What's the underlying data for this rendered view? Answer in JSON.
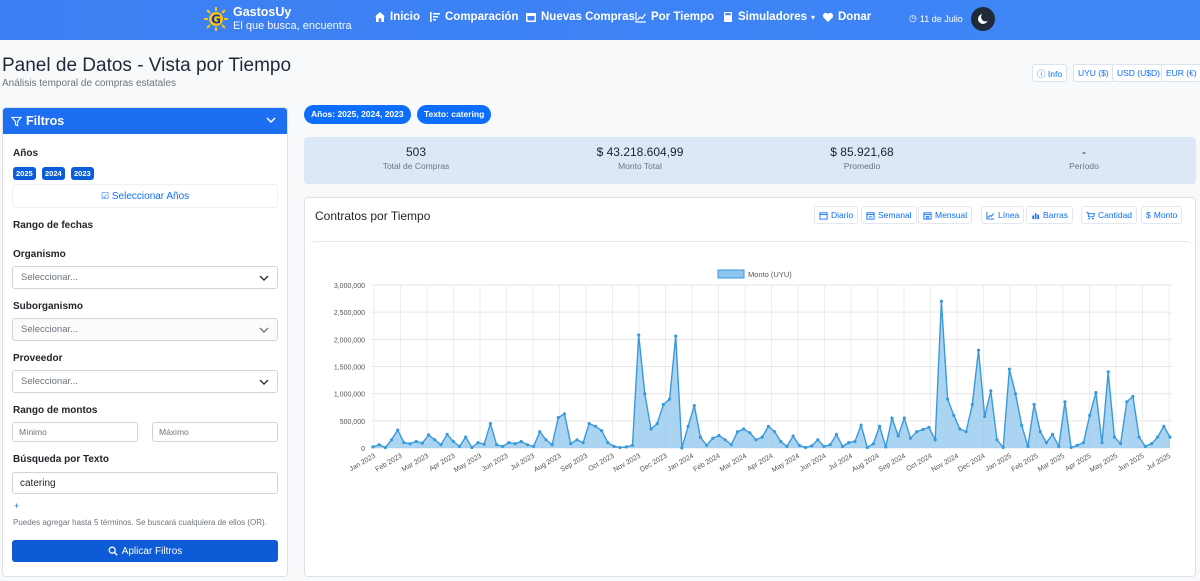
{
  "nav": {
    "brand_title": "GastosUy",
    "brand_tagline": "El que busca, encuentra",
    "items": [
      "Inicio",
      "Comparación",
      "Nuevas Compras",
      "Por Tiempo",
      "Simuladores",
      "Donar"
    ],
    "date": "11 de Julio"
  },
  "header": {
    "title": "Panel de Datos - Vista por Tiempo",
    "subtitle": "Análisis temporal de compras estatales",
    "info_label": "Info",
    "currencies": [
      "UYU ($)",
      "USD (U$D)",
      "EUR (€)"
    ]
  },
  "filters": {
    "title": "Filtros",
    "years_label": "Años",
    "years": [
      "2025",
      "2024",
      "2023"
    ],
    "select_years": "Seleccionar Años",
    "date_range_label": "Rango de fechas",
    "organismo_label": "Organismo",
    "organismo_placeholder": "Seleccionar...",
    "suborganismo_label": "Suborganismo",
    "suborganismo_placeholder": "Seleccionar...",
    "proveedor_label": "Proveedor",
    "proveedor_placeholder": "Seleccionar...",
    "amount_range_label": "Rango de montos",
    "min_placeholder": "Mínimo",
    "max_placeholder": "Máximo",
    "text_search_label": "Búsqueda por Texto",
    "text_value": "catering",
    "add_term": "+",
    "help": "Puedes agregar hasta 5 términos. Se buscará cualquiera de ellos (OR).",
    "apply": "Aplicar Filtros"
  },
  "chips": [
    "Años: 2025, 2024, 2023",
    "Texto: catering"
  ],
  "stats": [
    {
      "value": "503",
      "label": "Total de Compras"
    },
    {
      "value": "$ 43.218.604,99",
      "label": "Monto Total"
    },
    {
      "value": "$ 85.921,68",
      "label": "Promedio"
    },
    {
      "value": "-",
      "label": "Período"
    }
  ],
  "chart_card": {
    "title": "Contratos por Tiempo",
    "buttons": [
      "Diario",
      "Semanal",
      "Mensual",
      "Línea",
      "Barras",
      "Cantidad",
      "Monto"
    ]
  },
  "colors": {
    "accent": "#0d6efd",
    "navbar": "#3c7ff2",
    "series_fill": "#8ec5ee",
    "series_line": "#3a9ad9"
  },
  "chart_data": {
    "type": "area",
    "legend": [
      "Monto (UYU)"
    ],
    "ylim": [
      0,
      3000000
    ],
    "yticks": [
      "3,000,000",
      "2,500,000",
      "2,000,000",
      "1,500,000",
      "1,000,000",
      "500,000",
      "0"
    ],
    "xticks": [
      "Jan 2023",
      "Feb 2023",
      "Mar 2023",
      "Apr 2023",
      "May 2023",
      "Jun 2023",
      "Jul 2023",
      "Aug 2023",
      "Sep 2023",
      "Oct 2023",
      "Nov 2023",
      "Dec 2023",
      "Jan 2024",
      "Feb 2024",
      "Mar 2024",
      "Apr 2024",
      "May 2024",
      "Jun 2024",
      "Jul 2024",
      "Aug 2024",
      "Sep 2024",
      "Oct 2024",
      "Nov 2024",
      "Dec 2024",
      "Jan 2025",
      "Feb 2025",
      "Mar 2025",
      "Apr 2025",
      "May 2025",
      "Jun 2025",
      "Jul 2025"
    ],
    "values": [
      20000,
      60000,
      10000,
      150000,
      330000,
      100000,
      80000,
      120000,
      90000,
      240000,
      150000,
      60000,
      250000,
      120000,
      30000,
      200000,
      10000,
      100000,
      70000,
      450000,
      60000,
      30000,
      100000,
      80000,
      120000,
      60000,
      30000,
      300000,
      150000,
      60000,
      560000,
      630000,
      80000,
      150000,
      100000,
      450000,
      400000,
      320000,
      100000,
      30000,
      10000,
      20000,
      50000,
      2080000,
      1000000,
      350000,
      450000,
      800000,
      900000,
      2060000,
      0,
      400000,
      780000,
      200000,
      50000,
      180000,
      230000,
      150000,
      60000,
      300000,
      350000,
      280000,
      150000,
      200000,
      400000,
      300000,
      120000,
      30000,
      220000,
      50000,
      10000,
      40000,
      150000,
      30000,
      60000,
      250000,
      30000,
      100000,
      120000,
      420000,
      10000,
      80000,
      400000,
      20000,
      550000,
      220000,
      550000,
      180000,
      300000,
      340000,
      380000,
      150000,
      2700000,
      900000,
      600000,
      350000,
      300000,
      800000,
      1800000,
      580000,
      1050000,
      150000,
      10000,
      1450000,
      1000000,
      420000,
      30000,
      800000,
      300000,
      100000,
      250000,
      30000,
      850000,
      10000,
      50000,
      100000,
      600000,
      1020000,
      100000,
      1400000,
      200000,
      80000,
      850000,
      950000,
      200000,
      30000,
      80000,
      200000,
      400000,
      200000
    ]
  }
}
